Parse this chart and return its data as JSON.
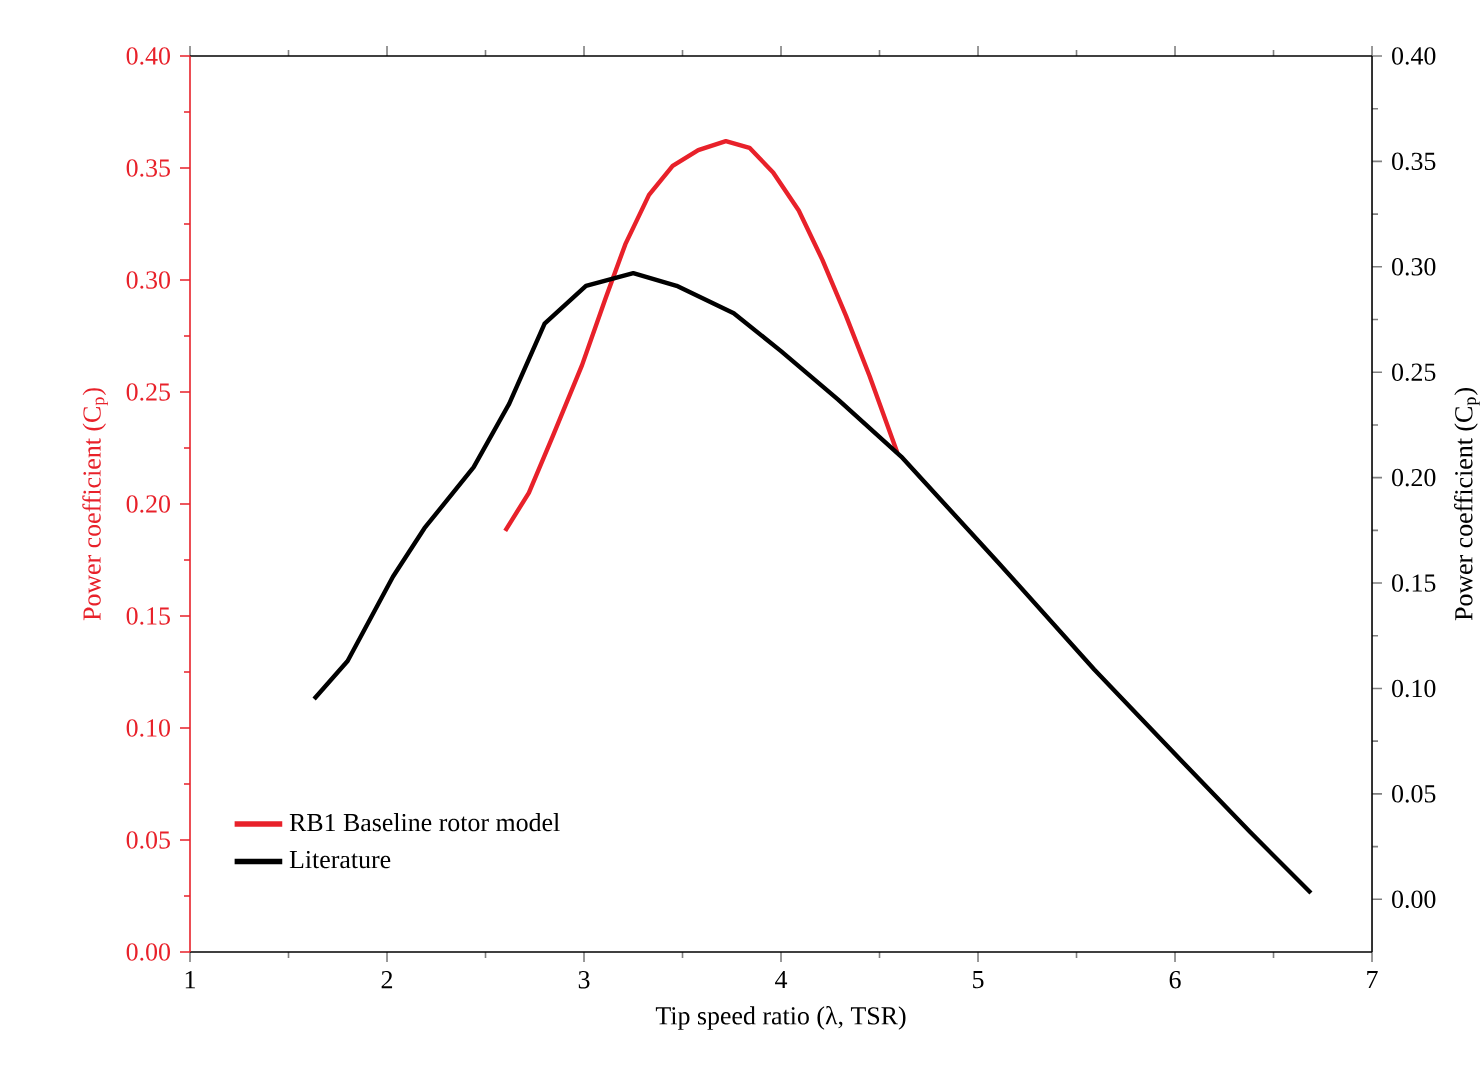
{
  "chart_data": {
    "type": "line",
    "xlabel": "Tip speed ratio (λ, TSR)",
    "ylabel": "Power coefficient (C$_{p}$)",
    "y2label": "Power coefficient (C$_{p}$)",
    "xlim": [
      1,
      7
    ],
    "xticks": [
      1,
      2,
      3,
      4,
      5,
      6,
      7
    ],
    "ylim": [
      0,
      0.4
    ],
    "yticks": [
      {
        "value": 0,
        "label": "0.00"
      },
      {
        "value": 0.05,
        "label": "0.05"
      },
      {
        "value": 0.1,
        "label": "0.10"
      },
      {
        "value": 0.15,
        "label": "0.15"
      },
      {
        "value": 0.2,
        "label": "0.20"
      },
      {
        "value": 0.25,
        "label": "0.25"
      },
      {
        "value": 0.3,
        "label": "0.30"
      },
      {
        "value": 0.35,
        "label": "0.35"
      },
      {
        "value": 0.4,
        "label": "0.40"
      }
    ],
    "y2lim": [
      -0.025,
      0.4
    ],
    "y2ticks": [
      {
        "value": 0,
        "label": "0.00"
      },
      {
        "value": 0.05,
        "label": "0.05"
      },
      {
        "value": 0.1,
        "label": "0.10"
      },
      {
        "value": 0.15,
        "label": "0.15"
      },
      {
        "value": 0.2,
        "label": "0.20"
      },
      {
        "value": 0.25,
        "label": "0.25"
      },
      {
        "value": 0.3,
        "label": "0.30"
      },
      {
        "value": 0.35,
        "label": "0.35"
      },
      {
        "value": 0.4,
        "label": "0.40"
      }
    ],
    "legend": "bottom left",
    "line_style": "solid",
    "series": [
      {
        "name": "RB1 Baseline rotor model",
        "color": "#e8212a",
        "x": [
          2.6,
          2.72,
          2.84,
          2.99,
          3.11,
          3.21,
          3.33,
          3.45,
          3.58,
          3.72,
          3.84,
          3.96,
          4.09,
          4.21,
          4.33,
          4.45,
          4.59
        ],
        "values": [
          0.188,
          0.205,
          0.23,
          0.262,
          0.292,
          0.316,
          0.338,
          0.351,
          0.358,
          0.362,
          0.359,
          0.348,
          0.331,
          0.309,
          0.284,
          0.257,
          0.223
        ]
      },
      {
        "name": "Literature",
        "color": "#000000",
        "axis": "y2",
        "x": [
          1.63,
          1.8,
          2.03,
          2.19,
          2.44,
          2.62,
          2.8,
          3.01,
          3.25,
          3.47,
          3.76,
          4.0,
          4.29,
          4.61,
          5.1,
          5.59,
          6.04,
          6.38,
          6.69
        ],
        "values": [
          0.095,
          0.113,
          0.153,
          0.176,
          0.205,
          0.235,
          0.273,
          0.291,
          0.297,
          0.291,
          0.278,
          0.26,
          0.237,
          0.21,
          0.16,
          0.109,
          0.065,
          0.032,
          0.003
        ]
      }
    ]
  }
}
